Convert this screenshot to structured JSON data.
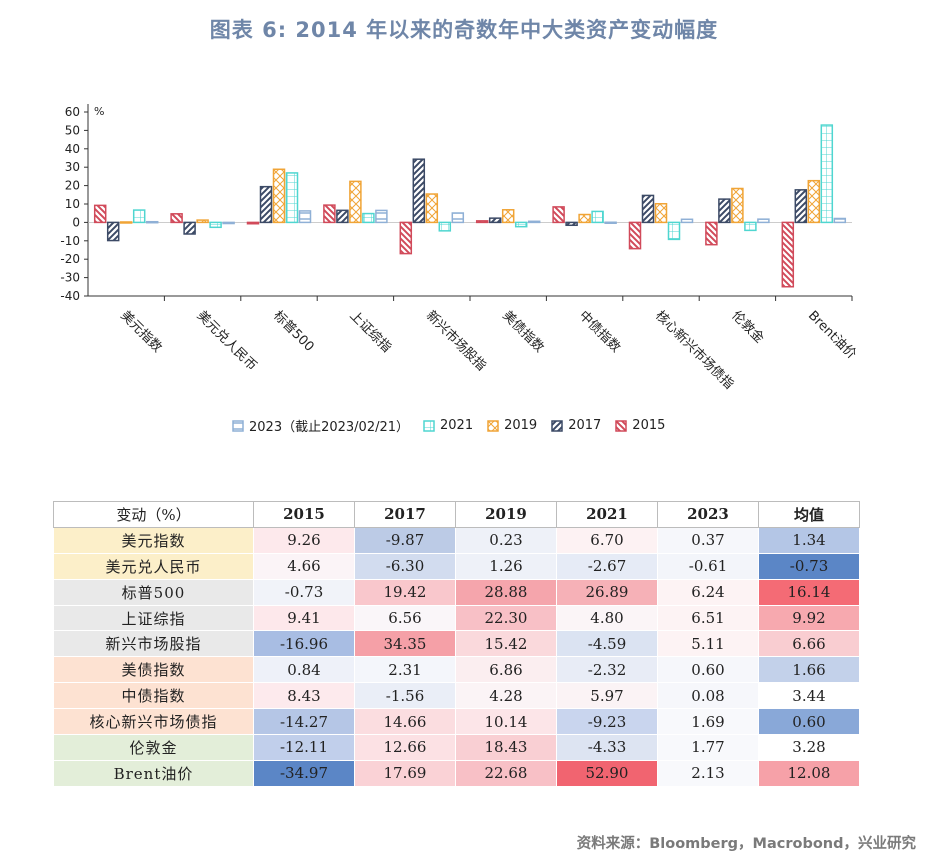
{
  "title": "图表 6:   2014 年以来的奇数年中大类资产变动幅度",
  "chart_data": {
    "type": "bar",
    "ylabel": "%",
    "ylim": [
      -40,
      60
    ],
    "yticks": [
      "60",
      "50",
      "40",
      "30",
      "20",
      "10",
      "0",
      "-10",
      "-20",
      "-30",
      "-40"
    ],
    "categories": [
      "美元指数",
      "美元兑人民币",
      "标普500",
      "上证综指",
      "新兴市场股指",
      "美债指数",
      "中债指数",
      "核心新兴市场债指",
      "伦敦金",
      "Brent油价"
    ],
    "series": [
      {
        "name": "2015",
        "color": "#d14a5a",
        "pattern": "diag-right",
        "values": [
          9.26,
          4.66,
          -0.73,
          9.41,
          -16.96,
          0.84,
          8.43,
          -14.27,
          -12.11,
          -34.97
        ]
      },
      {
        "name": "2017",
        "color": "#3c4a66",
        "pattern": "diag-left",
        "values": [
          -9.87,
          -6.3,
          19.42,
          6.56,
          34.35,
          2.31,
          -1.56,
          14.66,
          12.66,
          17.69
        ]
      },
      {
        "name": "2019",
        "color": "#f0a436",
        "pattern": "cross",
        "values": [
          0.23,
          1.26,
          28.88,
          22.3,
          15.42,
          6.86,
          4.28,
          10.14,
          18.43,
          22.68
        ]
      },
      {
        "name": "2021",
        "color": "#4fd6d0",
        "pattern": "grid",
        "values": [
          6.7,
          -2.67,
          26.89,
          4.8,
          -4.59,
          -2.32,
          5.97,
          -9.23,
          -4.33,
          52.9
        ]
      },
      {
        "name": "2023（截止2023/02/21）",
        "color": "#8fb0d6",
        "pattern": "hline",
        "values": [
          0.37,
          -0.61,
          6.24,
          6.51,
          5.11,
          0.6,
          0.08,
          1.69,
          1.77,
          2.13
        ]
      }
    ],
    "legend_order": [
      "2023（截止2023/02/21）",
      "2021",
      "2019",
      "2017",
      "2015"
    ],
    "legend_position": "bottom"
  },
  "table": {
    "corner": "变动（%）",
    "columns": [
      "2015",
      "2017",
      "2019",
      "2021",
      "2023",
      "均值"
    ],
    "rows": [
      {
        "name": "美元指数",
        "group_color": "#fcefc9",
        "values": [
          "9.26",
          "-9.87",
          "0.23",
          "6.70",
          "0.37",
          "1.34"
        ],
        "colors": [
          "#fde9ec",
          "#bccbe6",
          "#eef1f8",
          "#fdf2f3",
          "#f6f7fb",
          "#b4c6e6"
        ]
      },
      {
        "name": "美元兑人民币",
        "group_color": "#fcefc9",
        "values": [
          "4.66",
          "-6.30",
          "1.26",
          "-2.67",
          "-0.61",
          "-0.73"
        ],
        "colors": [
          "#fbf4f7",
          "#d2dcef",
          "#eef1f8",
          "#e6ebf6",
          "#f3f5fa",
          "#5b86c6"
        ]
      },
      {
        "name": "标普500",
        "group_color": "#e9e9e9",
        "values": [
          "-0.73",
          "19.42",
          "28.88",
          "26.89",
          "6.24",
          "16.14"
        ],
        "colors": [
          "#f1f3f9",
          "#f9c7cc",
          "#f5a5ac",
          "#f6b1b7",
          "#fdf3f4",
          "#f46b75"
        ]
      },
      {
        "name": "上证综指",
        "group_color": "#e9e9e9",
        "values": [
          "9.41",
          "6.56",
          "22.30",
          "4.80",
          "6.51",
          "9.92"
        ],
        "colors": [
          "#fde8eb",
          "#faf6f9",
          "#f8c0c6",
          "#fbf5f7",
          "#fdf3f4",
          "#f7a9af"
        ]
      },
      {
        "name": "新兴市场股指",
        "group_color": "#e9e9e9",
        "values": [
          "-16.96",
          "34.35",
          "15.42",
          "-4.59",
          "5.11",
          "6.66"
        ],
        "colors": [
          "#a8bde3",
          "#f5a0a7",
          "#fad9dc",
          "#dbe3f2",
          "#fdf3f4",
          "#f9cdd1"
        ]
      },
      {
        "name": "美债指数",
        "group_color": "#fde2d2",
        "values": [
          "0.84",
          "2.31",
          "6.86",
          "-2.32",
          "0.60",
          "1.66"
        ],
        "colors": [
          "#eef1f9",
          "#f4f6fb",
          "#fbeef0",
          "#e8ecf6",
          "#f6f7fb",
          "#c3d1ea"
        ]
      },
      {
        "name": "中债指数",
        "group_color": "#fde2d2",
        "values": [
          "8.43",
          "-1.56",
          "4.28",
          "5.97",
          "0.08",
          "3.44"
        ],
        "colors": [
          "#fdeaed",
          "#eaeef7",
          "#fbf4f6",
          "#fbf3f5",
          "#f6f7fb",
          "#ffffff"
        ]
      },
      {
        "name": "核心新兴市场债指",
        "group_color": "#fde2d2",
        "values": [
          "-14.27",
          "14.66",
          "10.14",
          "-9.23",
          "1.69",
          "0.60"
        ],
        "colors": [
          "#b5c6e6",
          "#fbdde0",
          "#fce5e8",
          "#c9d5ee",
          "#f8f9fc",
          "#89a8d8"
        ]
      },
      {
        "name": "伦敦金",
        "group_color": "#e3eed9",
        "values": [
          "-12.11",
          "12.66",
          "18.43",
          "-4.33",
          "1.77",
          "3.28"
        ],
        "colors": [
          "#c1cfeb",
          "#fce1e4",
          "#f9cfd3",
          "#dde4f2",
          "#f8f9fc",
          "#ffffff"
        ]
      },
      {
        "name": "Brent油价",
        "group_color": "#e3eed9",
        "values": [
          "-34.97",
          "17.69",
          "22.68",
          "52.90",
          "2.13",
          "12.08"
        ],
        "colors": [
          "#5b86c6",
          "#fad2d6",
          "#f8c0c6",
          "#f16470",
          "#f8f9fc",
          "#f6a1a8"
        ]
      }
    ]
  },
  "source": "资料来源：Bloomberg，Macrobond，兴业研究"
}
